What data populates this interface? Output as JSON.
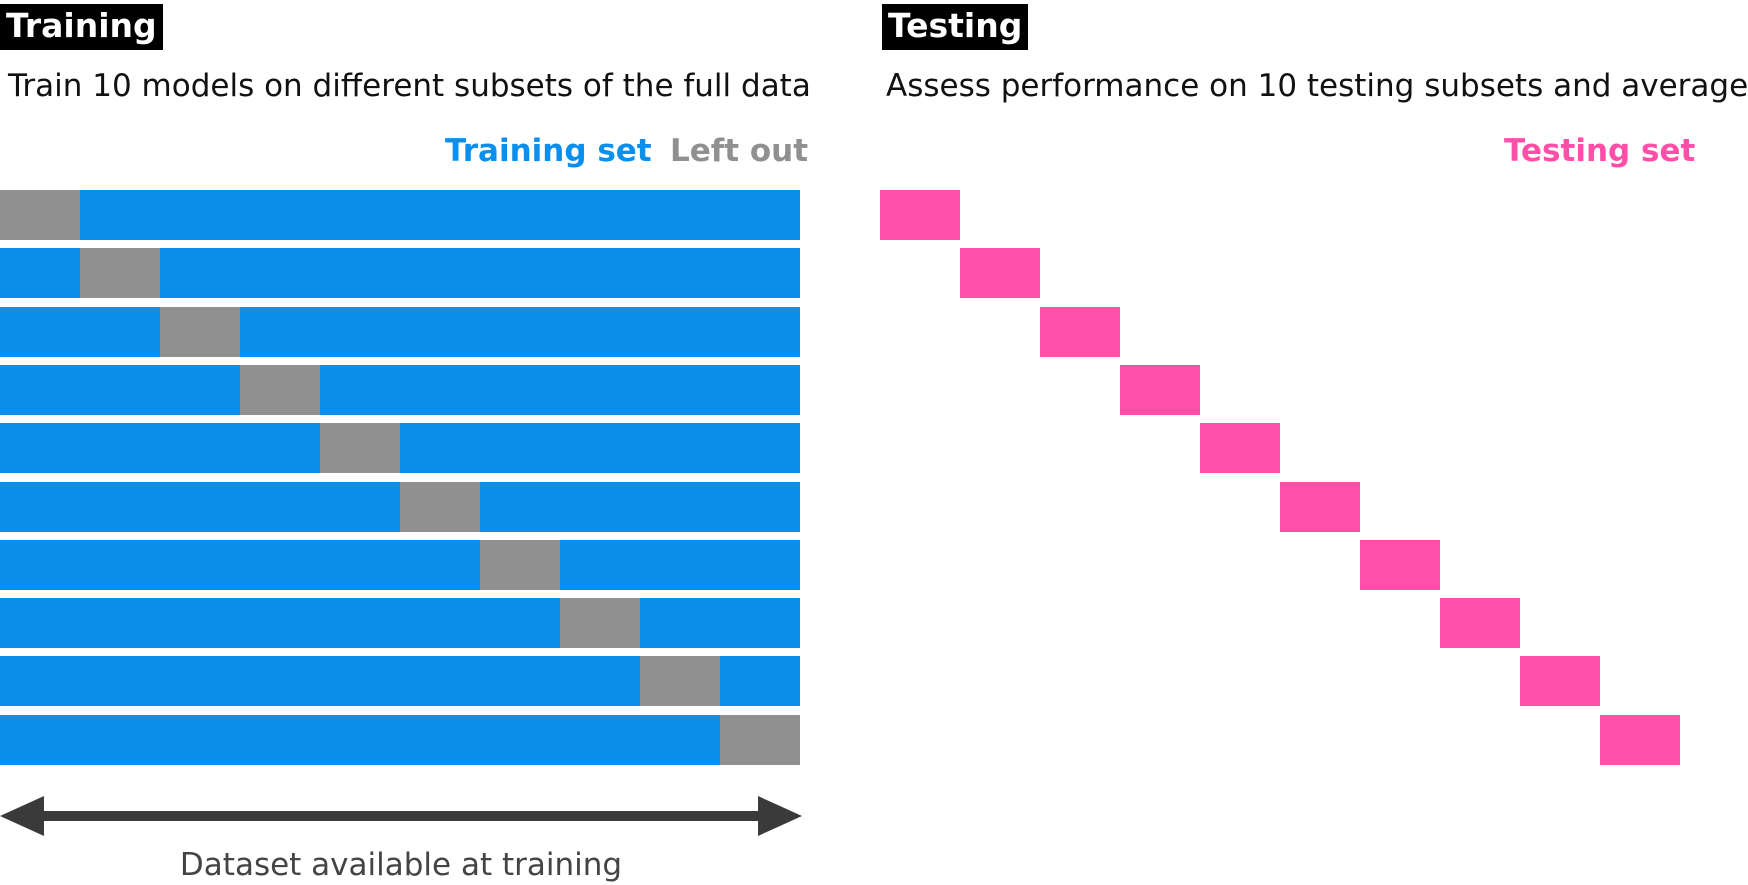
{
  "training": {
    "tag": "Training",
    "subtitle": "Train 10 models on different subsets of the full data",
    "legend_training": "Training set",
    "legend_leftout": "Left out",
    "fold_count": 10
  },
  "testing": {
    "tag": "Testing",
    "subtitle": "Assess performance on 10 testing subsets and average",
    "legend_testing": "Testing set"
  },
  "axis_label": "Dataset available at training",
  "colors": {
    "training": "#0A8FEC",
    "leftout": "#909090",
    "testing": "#FF4FA8",
    "arrow": "#3a3a3a"
  }
}
